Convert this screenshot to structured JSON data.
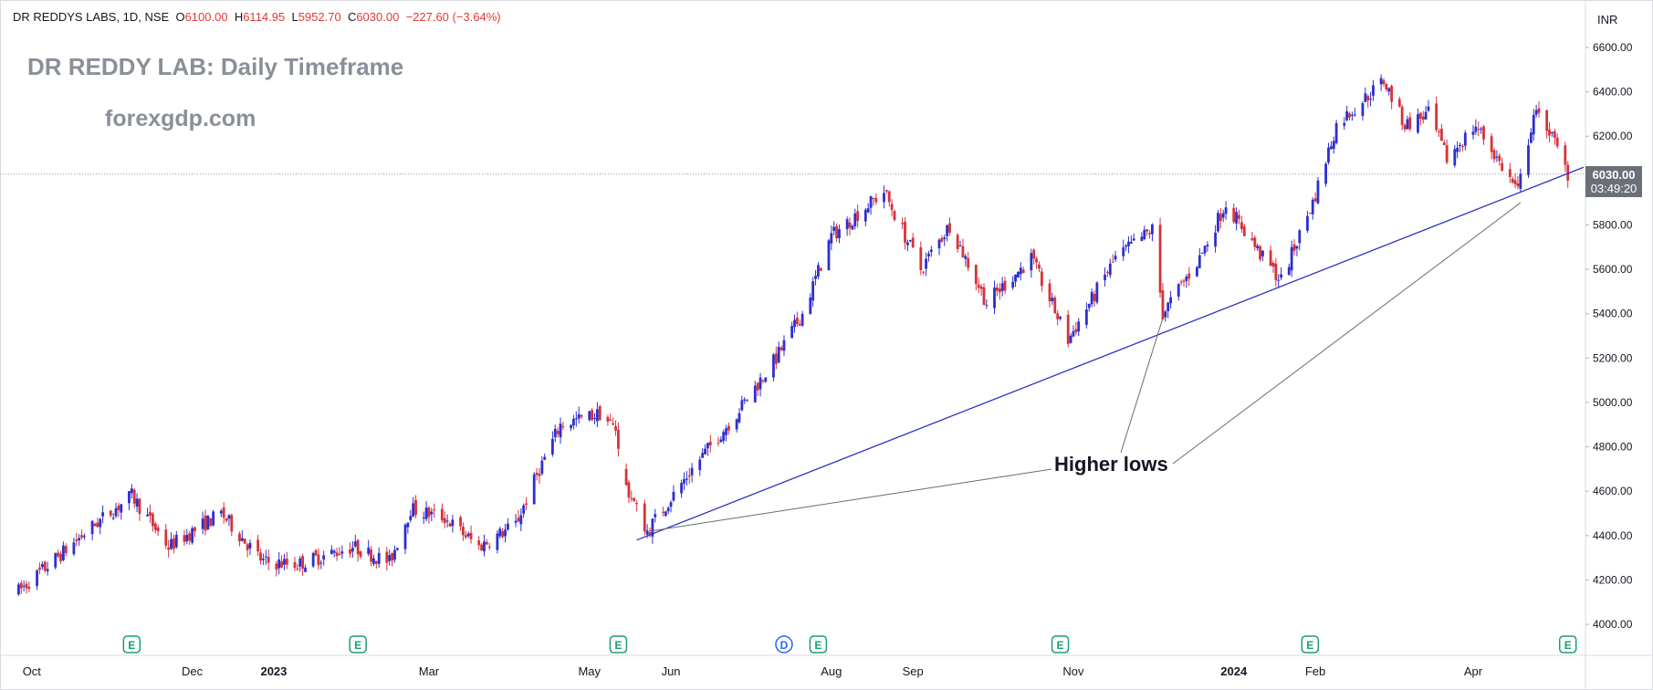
{
  "header": {
    "symbol": "DR REDDYS LABS, 1D, NSE",
    "o_label": "O",
    "o": "6100.00",
    "h_label": "H",
    "h": "6114.95",
    "l_label": "L",
    "l": "5952.70",
    "c_label": "C",
    "c": "6030.00",
    "change": "−227.60 (−3.64%)"
  },
  "overlay": {
    "title": "DR REDDY LAB: Daily Timeframe",
    "website": "forexgdp.com",
    "annotation": "Higher lows"
  },
  "price_axis": {
    "currency": "INR",
    "ticks": [
      "6600.00",
      "6400.00",
      "6200.00",
      "6000.00",
      "5800.00",
      "5600.00",
      "5400.00",
      "5200.00",
      "5000.00",
      "4800.00",
      "4600.00",
      "4400.00",
      "4200.00",
      "4000.00"
    ]
  },
  "current": {
    "price": "6030.00",
    "countdown": "03:49:20"
  },
  "time_axis": [
    "Oct",
    "Dec",
    "2023",
    "Mar",
    "May",
    "Jun",
    "Aug",
    "Sep",
    "Nov",
    "2024",
    "Feb",
    "Apr"
  ],
  "colors": {
    "up": "#2d2fcf",
    "down": "#d6323a",
    "trendline": "#2a2fc8",
    "pointer": "#6b6b6b",
    "event": "#1a9e74",
    "dividend": "#2962ff"
  },
  "chart_data": {
    "type": "candlestick",
    "title": "DR REDDY LAB: Daily Timeframe",
    "y_range": [
      3900,
      6700
    ],
    "price_series": [
      {
        "date": "2022-09-26",
        "close": 4150
      },
      {
        "date": "2022-10-25",
        "close": 4450
      },
      {
        "date": "2022-11-08",
        "close": 4580
      },
      {
        "date": "2022-11-22",
        "close": 4350
      },
      {
        "date": "2022-12-12",
        "close": 4500
      },
      {
        "date": "2022-12-28",
        "close": 4280
      },
      {
        "date": "2023-01-10",
        "close": 4270
      },
      {
        "date": "2023-01-31",
        "close": 4350
      },
      {
        "date": "2023-02-14",
        "close": 4280
      },
      {
        "date": "2023-02-22",
        "close": 4520
      },
      {
        "date": "2023-03-07",
        "close": 4480
      },
      {
        "date": "2023-03-20",
        "close": 4350
      },
      {
        "date": "2023-04-03",
        "close": 4450
      },
      {
        "date": "2023-04-12",
        "close": 4700
      },
      {
        "date": "2023-04-20",
        "close": 4900
      },
      {
        "date": "2023-05-05",
        "close": 4950
      },
      {
        "date": "2023-05-11",
        "close": 4880
      },
      {
        "date": "2023-05-15",
        "close": 4620
      },
      {
        "date": "2023-05-23",
        "close": 4420
      },
      {
        "date": "2023-06-09",
        "close": 4700
      },
      {
        "date": "2023-06-26",
        "close": 4950
      },
      {
        "date": "2023-07-11",
        "close": 5200
      },
      {
        "date": "2023-07-21",
        "close": 5400
      },
      {
        "date": "2023-08-01",
        "close": 5750
      },
      {
        "date": "2023-08-21",
        "close": 5950
      },
      {
        "date": "2023-09-04",
        "close": 5600
      },
      {
        "date": "2023-09-15",
        "close": 5800
      },
      {
        "date": "2023-09-29",
        "close": 5450
      },
      {
        "date": "2023-10-16",
        "close": 5650
      },
      {
        "date": "2023-10-30",
        "close": 5280
      },
      {
        "date": "2023-11-17",
        "close": 5650
      },
      {
        "date": "2023-12-01",
        "close": 5780
      },
      {
        "date": "2023-12-05",
        "close": 5400
      },
      {
        "date": "2023-12-19",
        "close": 5650
      },
      {
        "date": "2023-12-29",
        "close": 5900
      },
      {
        "date": "2024-01-12",
        "close": 5650
      },
      {
        "date": "2024-01-19",
        "close": 5550
      },
      {
        "date": "2024-01-31",
        "close": 5900
      },
      {
        "date": "2024-02-09",
        "close": 6250
      },
      {
        "date": "2024-02-27",
        "close": 6450
      },
      {
        "date": "2024-03-06",
        "close": 6250
      },
      {
        "date": "2024-03-15",
        "close": 6300
      },
      {
        "date": "2024-03-22",
        "close": 6100
      },
      {
        "date": "2024-04-02",
        "close": 6250
      },
      {
        "date": "2024-04-18",
        "close": 5950
      },
      {
        "date": "2024-04-24",
        "close": 6300
      },
      {
        "date": "2024-04-29",
        "close": 6250
      },
      {
        "date": "2024-05-07",
        "close": 6030
      }
    ],
    "trendline": [
      {
        "date": "2023-05-19",
        "price": 4380
      },
      {
        "date": "2024-05-13",
        "price": 6060
      }
    ],
    "higher_lows": [
      {
        "date": "2023-05-24",
        "price": 4420
      },
      {
        "date": "2023-12-05",
        "price": 5380
      },
      {
        "date": "2024-04-19",
        "price": 5900
      }
    ],
    "earnings_dates": [
      "2022-11-08",
      "2023-02-02",
      "2023-05-12",
      "2023-07-27",
      "2023-10-27",
      "2024-01-30",
      "2024-05-07"
    ],
    "dividend_dates": [
      "2023-07-14"
    ]
  }
}
